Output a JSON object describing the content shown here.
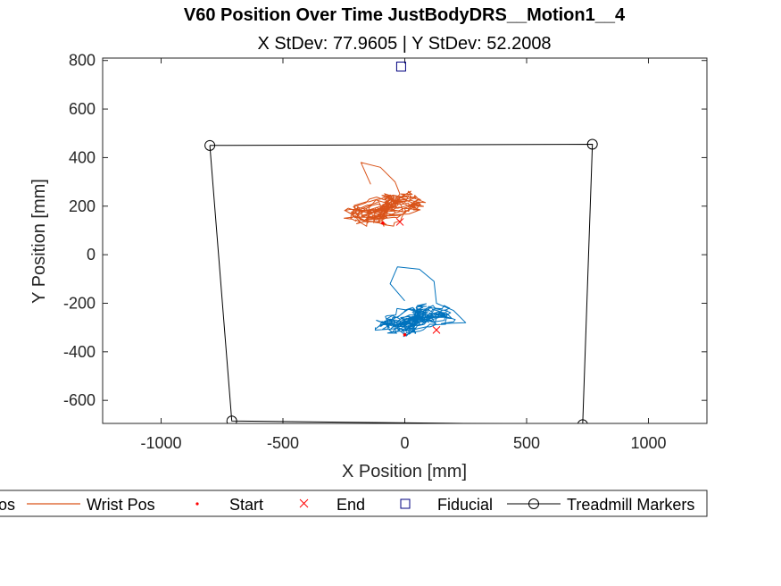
{
  "chart_data": {
    "type": "line",
    "title": "V60 Position Over Time JustBodyDRS__Motion1__4",
    "subtitle": "X StDev: 77.9605  |  Y StDev: 52.2008",
    "xlabel": "X Position [mm]",
    "ylabel": "Y Position [mm]",
    "xlim": [
      -1240,
      1240
    ],
    "ylim": [
      -695,
      810
    ],
    "xticks": [
      -1000,
      -500,
      0,
      500,
      1000
    ],
    "yticks": [
      -600,
      -400,
      -200,
      0,
      200,
      400,
      600,
      800
    ],
    "grid": false,
    "legend_position": "bottom",
    "colors": {
      "body": "#0072BD",
      "wrist": "#D95319",
      "start_end": "#FF0000",
      "fiducial": "#00007F",
      "treadmill": "#000000"
    },
    "series": [
      {
        "name": "Wrist Pos",
        "color": "#D95319",
        "loop_center": [
          -80,
          190
        ],
        "loop_spread": [
          150,
          60
        ],
        "excursion": [
          [
            -140,
            290
          ],
          [
            -180,
            380
          ],
          [
            -100,
            360
          ],
          [
            -40,
            300
          ],
          [
            -20,
            250
          ]
        ]
      },
      {
        "name": "Body Pos",
        "color": "#0072BD",
        "loop_center": [
          40,
          -270
        ],
        "loop_spread": [
          140,
          55
        ],
        "excursion": [
          [
            0,
            -190
          ],
          [
            -60,
            -120
          ],
          [
            -30,
            -50
          ],
          [
            60,
            -60
          ],
          [
            120,
            -110
          ],
          [
            130,
            -200
          ],
          [
            200,
            -230
          ],
          [
            250,
            -280
          ]
        ]
      }
    ],
    "start_points": [
      [
        -90,
        130
      ],
      [
        0,
        -330
      ]
    ],
    "end_points": [
      [
        -20,
        135
      ],
      [
        130,
        -310
      ]
    ],
    "fiducial": [
      [
        -15,
        775
      ]
    ],
    "treadmill_markers": [
      [
        -800,
        450
      ],
      [
        770,
        455
      ],
      [
        730,
        -700
      ],
      [
        -710,
        -685
      ]
    ]
  },
  "legend": {
    "items": [
      "os",
      "Wrist Pos",
      "Start",
      "End",
      "Fiducial",
      "Treadmill Markers"
    ]
  }
}
